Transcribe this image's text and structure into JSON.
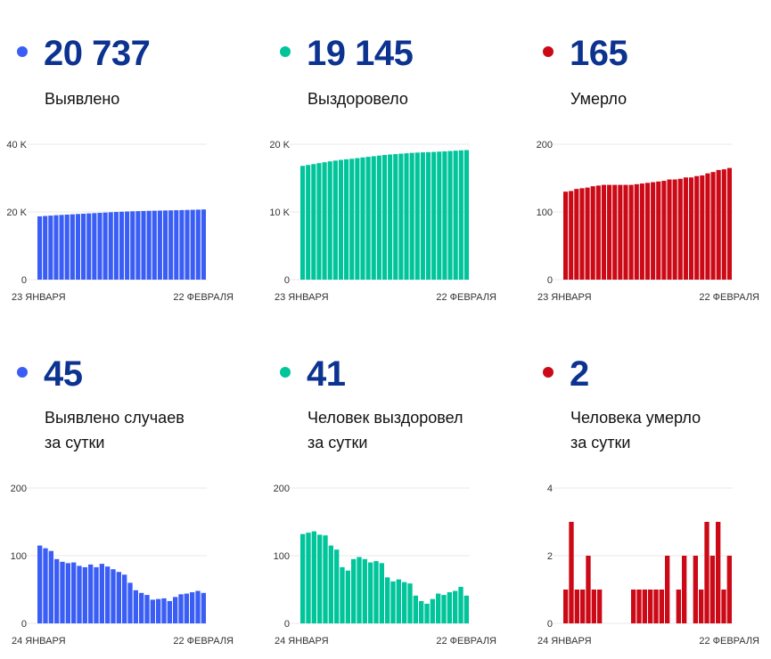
{
  "panels": [
    {
      "value": "20 737",
      "label": [
        "Выявлено"
      ],
      "color": "#3a5ef5"
    },
    {
      "value": "19 145",
      "label": [
        "Выздоровело"
      ],
      "color": "#00c49a"
    },
    {
      "value": "165",
      "label": [
        "Умерло"
      ],
      "color": "#cc0a17"
    },
    {
      "value": "45",
      "label": [
        "Выявлено случаев",
        "за сутки"
      ],
      "color": "#3a5ef5"
    },
    {
      "value": "41",
      "label": [
        "Человек выздоровел",
        "за сутки"
      ],
      "color": "#00c49a"
    },
    {
      "value": "2",
      "label": [
        "Человека умерло",
        "за сутки"
      ],
      "color": "#cc0a17"
    }
  ],
  "chart_data": [
    {
      "type": "bar",
      "title": "Выявлено",
      "ylim": [
        0,
        40000
      ],
      "yticks": [
        "0",
        "20 K",
        "40 K"
      ],
      "ytick_values": [
        0,
        20000,
        40000
      ],
      "xlabels": [
        "23 ЯНВАРЯ",
        "22 ФЕВРАЛЯ"
      ],
      "color": "#3a5ef5",
      "values": [
        18699,
        18814,
        18925,
        19032,
        19127,
        19218,
        19307,
        19397,
        19482,
        19565,
        19652,
        19735,
        19823,
        19907,
        19987,
        20063,
        20135,
        20195,
        20244,
        20289,
        20331,
        20366,
        20402,
        20439,
        20472,
        20511,
        20554,
        20598,
        20644,
        20692,
        20737
      ]
    },
    {
      "type": "bar",
      "title": "Выздоровело",
      "ylim": [
        0,
        20000
      ],
      "yticks": [
        "0",
        "10 K",
        "20 K"
      ],
      "ytick_values": [
        0,
        10000,
        20000
      ],
      "xlabels": [
        "23 ЯНВАРЯ",
        "22 ФЕВРАЛЯ"
      ],
      "color": "#00c49a",
      "values": [
        16809,
        16941,
        17075,
        17211,
        17342,
        17472,
        17587,
        17696,
        17779,
        17857,
        17952,
        18050,
        18145,
        18235,
        18327,
        18416,
        18484,
        18546,
        18611,
        18672,
        18731,
        18772,
        18805,
        18834,
        18870,
        18914,
        18956,
        19002,
        19050,
        19104,
        19145
      ]
    },
    {
      "type": "bar",
      "title": "Умерло",
      "ylim": [
        0,
        200
      ],
      "yticks": [
        "0",
        "100",
        "200"
      ],
      "ytick_values": [
        0,
        100,
        200
      ],
      "xlabels": [
        "23 ЯНВАРЯ",
        "22 ФЕВРАЛЯ"
      ],
      "color": "#cc0a17",
      "values": [
        130,
        131,
        134,
        135,
        136,
        138,
        139,
        140,
        140,
        140,
        140,
        140,
        140,
        141,
        142,
        143,
        144,
        145,
        146,
        148,
        148,
        149,
        151,
        151,
        153,
        154,
        157,
        159,
        162,
        163,
        165
      ]
    },
    {
      "type": "bar",
      "title": "Выявлено случаев за сутки",
      "ylim": [
        0,
        200
      ],
      "yticks": [
        "0",
        "100",
        "200"
      ],
      "ytick_values": [
        0,
        100,
        200
      ],
      "xlabels": [
        "24 ЯНВАРЯ",
        "22 ФЕВРАЛЯ"
      ],
      "color": "#3a5ef5",
      "values": [
        115,
        111,
        107,
        95,
        91,
        89,
        90,
        85,
        83,
        87,
        83,
        88,
        84,
        80,
        76,
        72,
        60,
        49,
        45,
        42,
        35,
        36,
        37,
        33,
        39,
        43,
        44,
        46,
        48,
        45
      ]
    },
    {
      "type": "bar",
      "title": "Человек выздоровел за сутки",
      "ylim": [
        0,
        200
      ],
      "yticks": [
        "0",
        "100",
        "200"
      ],
      "ytick_values": [
        0,
        100,
        200
      ],
      "xlabels": [
        "24 ЯНВАРЯ",
        "22 ФЕВРАЛЯ"
      ],
      "color": "#00c49a",
      "values": [
        132,
        134,
        136,
        131,
        130,
        115,
        109,
        83,
        78,
        95,
        98,
        95,
        90,
        92,
        89,
        68,
        62,
        65,
        61,
        59,
        41,
        33,
        29,
        36,
        44,
        42,
        46,
        48,
        54,
        41
      ]
    },
    {
      "type": "bar",
      "title": "Человека умерло за сутки",
      "ylim": [
        0,
        4
      ],
      "yticks": [
        "0",
        "2",
        "4"
      ],
      "ytick_values": [
        0,
        2,
        4
      ],
      "xlabels": [
        "24 ЯНВАРЯ",
        "22 ФЕВРАЛЯ"
      ],
      "color": "#cc0a17",
      "values": [
        1,
        3,
        1,
        1,
        2,
        1,
        1,
        0,
        0,
        0,
        0,
        0,
        1,
        1,
        1,
        1,
        1,
        1,
        2,
        0,
        1,
        2,
        0,
        2,
        1,
        3,
        2,
        3,
        1,
        2
      ]
    }
  ]
}
